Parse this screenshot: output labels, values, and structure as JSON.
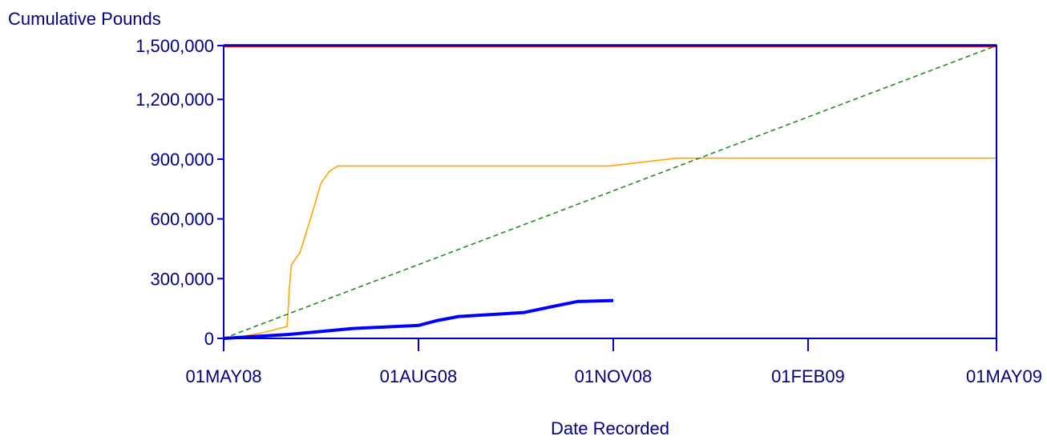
{
  "chart_data": {
    "type": "line",
    "title": "",
    "ylabel": "Cumulative Pounds",
    "xlabel": "Date Recorded",
    "ylim": [
      0,
      1470000
    ],
    "xlim": [
      "2008-05-01",
      "2009-05-01"
    ],
    "yticks": [
      0,
      300000,
      600000,
      900000,
      1200000,
      1500000
    ],
    "ytick_labels": [
      "0",
      "300,000",
      "600,000",
      "900,000",
      "1,200,000",
      "1,500,000"
    ],
    "xticks": [
      "2008-05-01",
      "2008-08-01",
      "2008-11-01",
      "2009-02-01",
      "2009-05-01"
    ],
    "xtick_labels": [
      "01MAY08",
      "01AUG08",
      "01NOV08",
      "01FEB09",
      "01MAY09"
    ],
    "grid": false,
    "legend": "none",
    "axis_color": "#0000cc",
    "series": [
      {
        "color": "#ff0000",
        "style": "solid-thick",
        "points": [
          [
            "2008-05-01",
            1470000
          ],
          [
            "2009-05-01",
            1470000
          ]
        ]
      },
      {
        "color": "#ffa500",
        "style": "solid-thin",
        "points": [
          [
            "2008-05-01",
            0
          ],
          [
            "2008-05-10",
            10000
          ],
          [
            "2008-05-20",
            30000
          ],
          [
            "2008-05-31",
            60000
          ],
          [
            "2008-06-01",
            250000
          ],
          [
            "2008-06-02",
            370000
          ],
          [
            "2008-06-06",
            430000
          ],
          [
            "2008-06-11",
            600000
          ],
          [
            "2008-06-16",
            780000
          ],
          [
            "2008-06-20",
            840000
          ],
          [
            "2008-06-24",
            865000
          ],
          [
            "2008-10-30",
            865000
          ],
          [
            "2008-12-01",
            905000
          ],
          [
            "2009-05-01",
            905000
          ]
        ]
      },
      {
        "color": "#228b22",
        "style": "dashed",
        "points": [
          [
            "2008-05-01",
            0
          ],
          [
            "2009-05-01",
            1470000
          ]
        ]
      },
      {
        "color": "#0000ff",
        "style": "solid-thick",
        "points": [
          [
            "2008-05-01",
            0
          ],
          [
            "2008-06-01",
            20000
          ],
          [
            "2008-07-01",
            50000
          ],
          [
            "2008-08-01",
            65000
          ],
          [
            "2008-08-10",
            90000
          ],
          [
            "2008-08-20",
            110000
          ],
          [
            "2008-09-20",
            130000
          ],
          [
            "2008-10-01",
            155000
          ],
          [
            "2008-10-15",
            185000
          ],
          [
            "2008-11-01",
            190000
          ]
        ]
      }
    ]
  }
}
